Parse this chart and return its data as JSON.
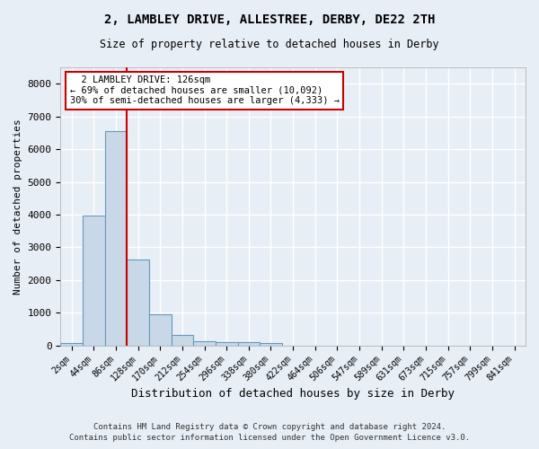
{
  "title_line1": "2, LAMBLEY DRIVE, ALLESTREE, DERBY, DE22 2TH",
  "title_line2": "Size of property relative to detached houses in Derby",
  "xlabel": "Distribution of detached houses by size in Derby",
  "ylabel": "Number of detached properties",
  "bar_categories": [
    "2sqm",
    "44sqm",
    "86sqm",
    "128sqm",
    "170sqm",
    "212sqm",
    "254sqm",
    "296sqm",
    "338sqm",
    "380sqm",
    "422sqm",
    "464sqm",
    "506sqm",
    "547sqm",
    "589sqm",
    "631sqm",
    "673sqm",
    "715sqm",
    "757sqm",
    "799sqm",
    "841sqm"
  ],
  "bar_values": [
    80,
    3980,
    6560,
    2620,
    960,
    320,
    120,
    110,
    90,
    70,
    0,
    0,
    0,
    0,
    0,
    0,
    0,
    0,
    0,
    0,
    0
  ],
  "bar_color": "#c8d8e8",
  "bar_edge_color": "#6699bb",
  "annotation_text": "  2 LAMBLEY DRIVE: 126sqm\n← 69% of detached houses are smaller (10,092)\n30% of semi-detached houses are larger (4,333) →",
  "annotation_box_color": "#ffffff",
  "annotation_box_edge_color": "#cc0000",
  "property_line_color": "#cc0000",
  "ylim": [
    0,
    8500
  ],
  "yticks": [
    0,
    1000,
    2000,
    3000,
    4000,
    5000,
    6000,
    7000,
    8000
  ],
  "background_color": "#e8eef5",
  "grid_color": "#ffffff",
  "footer_line1": "Contains HM Land Registry data © Crown copyright and database right 2024.",
  "footer_line2": "Contains public sector information licensed under the Open Government Licence v3.0."
}
